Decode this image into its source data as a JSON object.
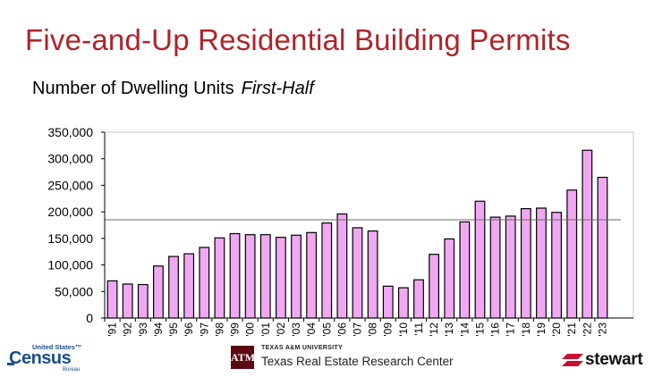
{
  "title": "Five-and-Up Residential Building Permits",
  "subtitle": "Number of Dwelling Units",
  "subtitle_emphasis": "First-Half",
  "logos": {
    "census_small": "United States™",
    "census_big": "Census",
    "census_bureau": "Bureau",
    "tamu_monogram": "ATM",
    "tamu_university": "TEXAS A&M UNIVERSITY",
    "tamu_center": "Texas Real Estate Research Center",
    "stewart": "stewart"
  },
  "colors": {
    "title": "#b0232a",
    "bar_fill": "#f0a8f2",
    "bar_stroke": "#000000",
    "reference_line": "#6b6b6b"
  },
  "chart_data": {
    "type": "bar",
    "categories": [
      "'91",
      "'92",
      "'93",
      "'94",
      "'95",
      "'96",
      "'97",
      "'98",
      "'99",
      "'00",
      "'01",
      "'02",
      "'03",
      "'04",
      "'05",
      "'06",
      "'07",
      "'08",
      "'09",
      "'10",
      "'11",
      "'12",
      "'13",
      "'14",
      "'15",
      "'16",
      "'17",
      "'18",
      "'19",
      "'20",
      "'21",
      "'22",
      "'23"
    ],
    "values": [
      70000,
      64000,
      63000,
      98000,
      116000,
      121000,
      133000,
      151000,
      159000,
      157000,
      157000,
      152000,
      156000,
      161000,
      179000,
      196000,
      170000,
      164000,
      60000,
      57000,
      72000,
      120000,
      149000,
      181000,
      220000,
      190000,
      192000,
      206000,
      207000,
      199000,
      241000,
      316000,
      265000
    ],
    "ylim": [
      0,
      350000
    ],
    "yticks": [
      0,
      50000,
      100000,
      150000,
      200000,
      250000,
      300000,
      350000
    ],
    "ytick_labels": [
      "0",
      "50,000",
      "100,000",
      "150,000",
      "200,000",
      "250,000",
      "300,000",
      "350,000"
    ],
    "reference_line": 185000,
    "title": "",
    "xlabel": "",
    "ylabel": "",
    "grid": false,
    "legend": "none"
  }
}
